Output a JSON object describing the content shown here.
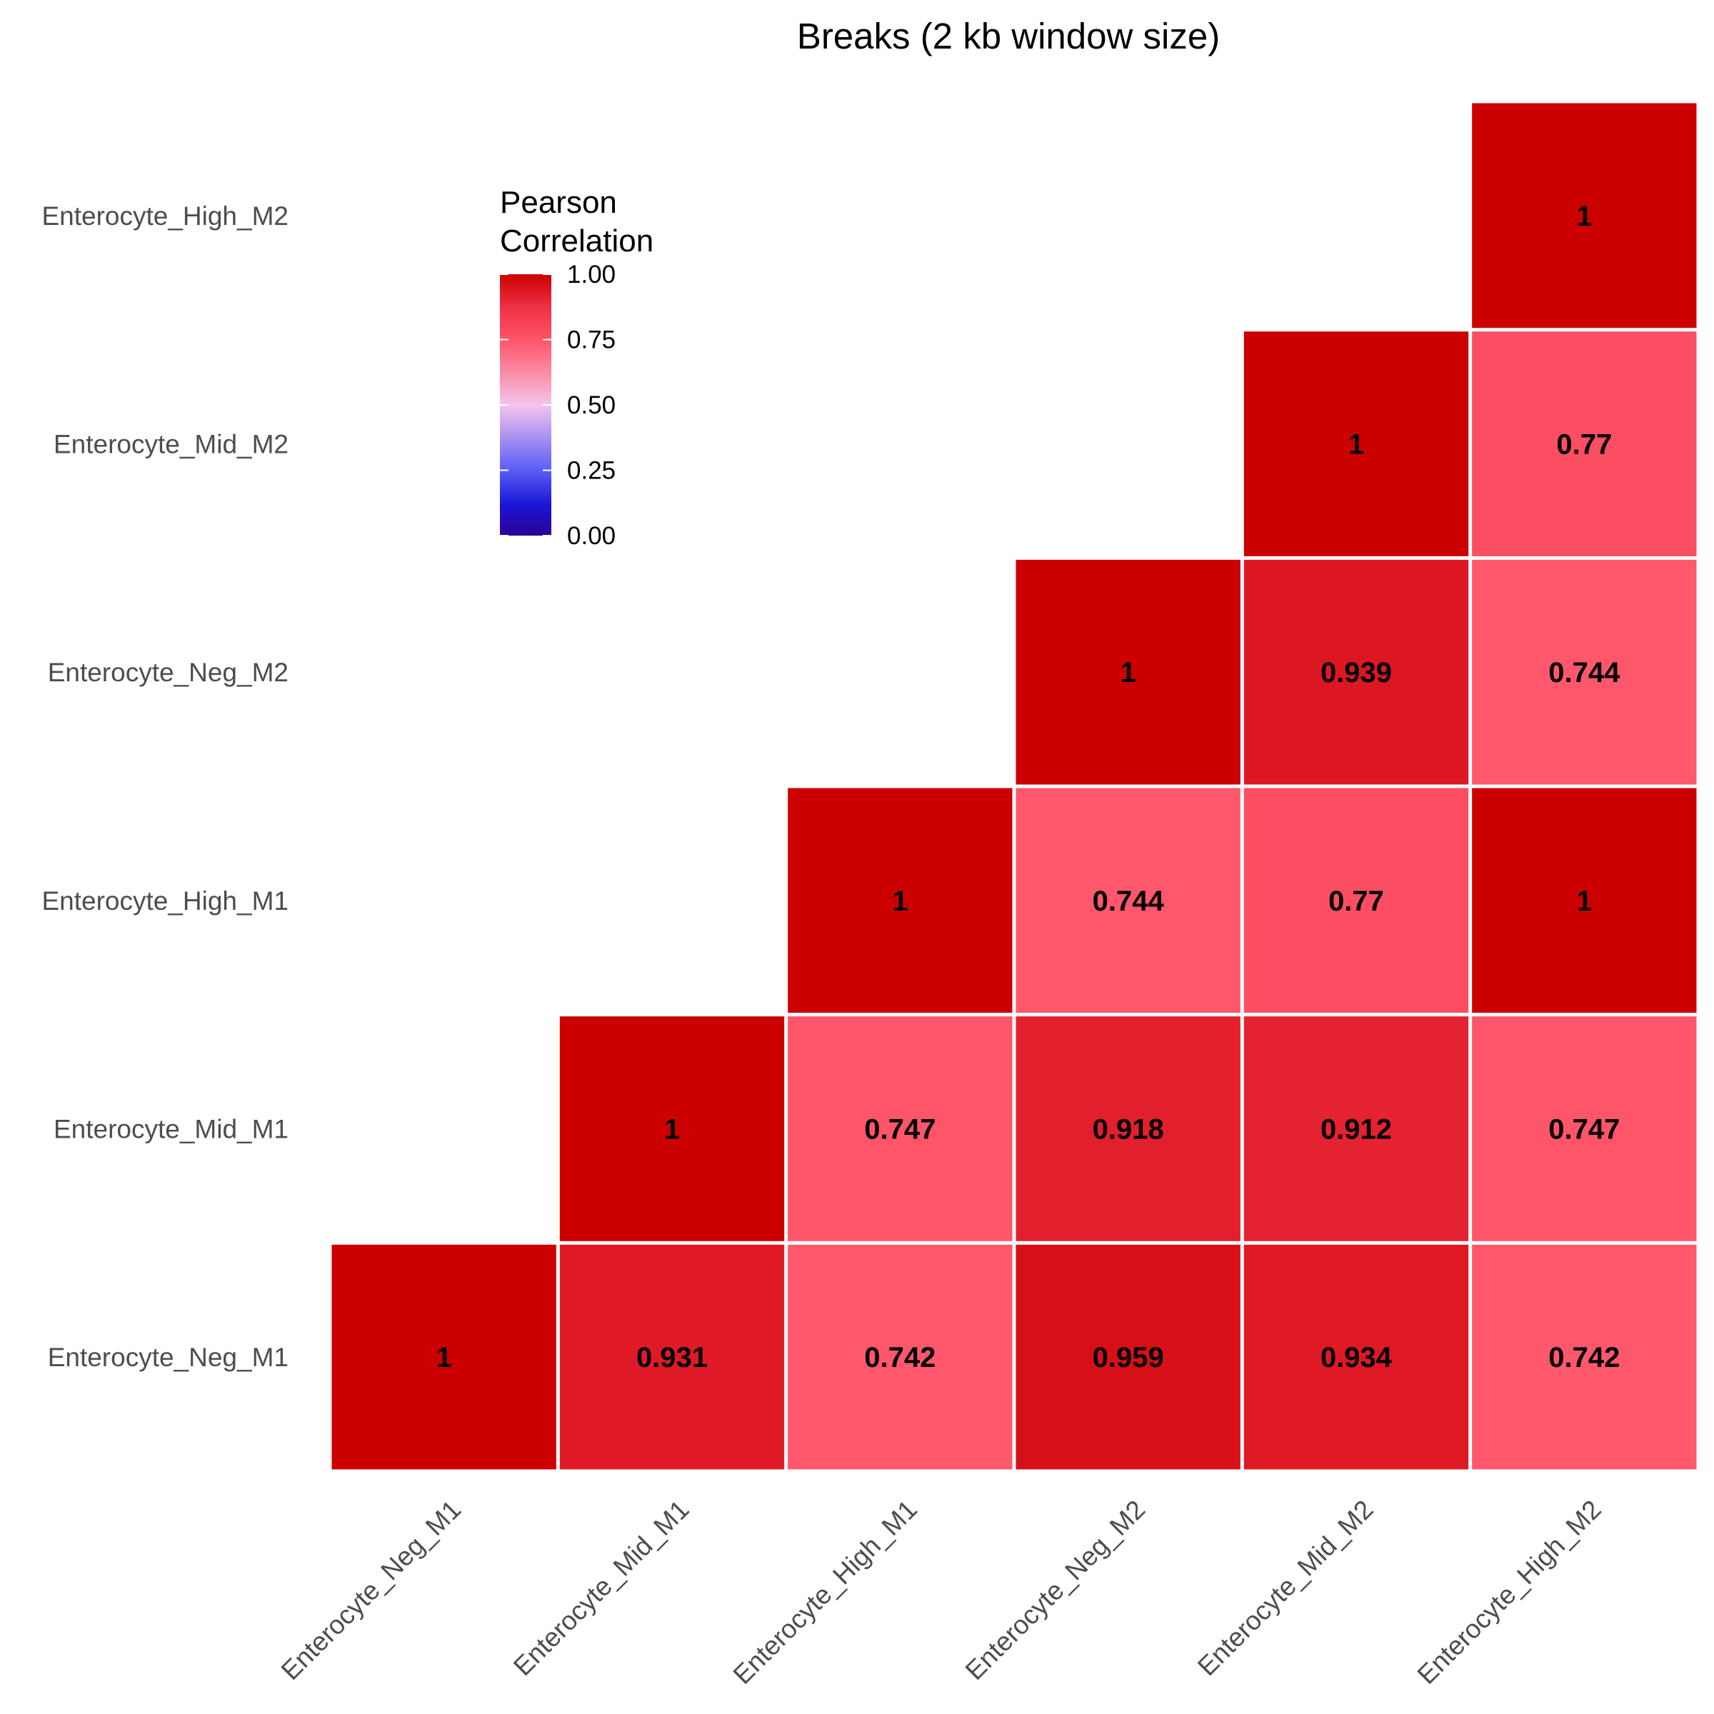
{
  "chart_data": {
    "type": "heatmap",
    "title": "Breaks (2 kb window size)",
    "x_categories": [
      "Enterocyte_Neg_M1",
      "Enterocyte_Mid_M1",
      "Enterocyte_High_M1",
      "Enterocyte_Neg_M2",
      "Enterocyte_Mid_M2",
      "Enterocyte_High_M2"
    ],
    "y_categories": [
      "Enterocyte_Neg_M1",
      "Enterocyte_Mid_M1",
      "Enterocyte_High_M1",
      "Enterocyte_Neg_M2",
      "Enterocyte_Mid_M2",
      "Enterocyte_High_M2"
    ],
    "cells": [
      {
        "x": "Enterocyte_Neg_M1",
        "y": "Enterocyte_Neg_M1",
        "value": 1,
        "label": "1"
      },
      {
        "x": "Enterocyte_Mid_M1",
        "y": "Enterocyte_Neg_M1",
        "value": 0.931,
        "label": "0.931"
      },
      {
        "x": "Enterocyte_High_M1",
        "y": "Enterocyte_Neg_M1",
        "value": 0.742,
        "label": "0.742"
      },
      {
        "x": "Enterocyte_Neg_M2",
        "y": "Enterocyte_Neg_M1",
        "value": 0.959,
        "label": "0.959"
      },
      {
        "x": "Enterocyte_Mid_M2",
        "y": "Enterocyte_Neg_M1",
        "value": 0.934,
        "label": "0.934"
      },
      {
        "x": "Enterocyte_High_M2",
        "y": "Enterocyte_Neg_M1",
        "value": 0.742,
        "label": "0.742"
      },
      {
        "x": "Enterocyte_Mid_M1",
        "y": "Enterocyte_Mid_M1",
        "value": 1,
        "label": "1"
      },
      {
        "x": "Enterocyte_High_M1",
        "y": "Enterocyte_Mid_M1",
        "value": 0.747,
        "label": "0.747"
      },
      {
        "x": "Enterocyte_Neg_M2",
        "y": "Enterocyte_Mid_M1",
        "value": 0.918,
        "label": "0.918"
      },
      {
        "x": "Enterocyte_Mid_M2",
        "y": "Enterocyte_Mid_M1",
        "value": 0.912,
        "label": "0.912"
      },
      {
        "x": "Enterocyte_High_M2",
        "y": "Enterocyte_Mid_M1",
        "value": 0.747,
        "label": "0.747"
      },
      {
        "x": "Enterocyte_High_M1",
        "y": "Enterocyte_High_M1",
        "value": 1,
        "label": "1"
      },
      {
        "x": "Enterocyte_Neg_M2",
        "y": "Enterocyte_High_M1",
        "value": 0.744,
        "label": "0.744"
      },
      {
        "x": "Enterocyte_Mid_M2",
        "y": "Enterocyte_High_M1",
        "value": 0.77,
        "label": "0.77"
      },
      {
        "x": "Enterocyte_High_M2",
        "y": "Enterocyte_High_M1",
        "value": 1,
        "label": "1"
      },
      {
        "x": "Enterocyte_Neg_M2",
        "y": "Enterocyte_Neg_M2",
        "value": 1,
        "label": "1"
      },
      {
        "x": "Enterocyte_Mid_M2",
        "y": "Enterocyte_Neg_M2",
        "value": 0.939,
        "label": "0.939"
      },
      {
        "x": "Enterocyte_High_M2",
        "y": "Enterocyte_Neg_M2",
        "value": 0.744,
        "label": "0.744"
      },
      {
        "x": "Enterocyte_Mid_M2",
        "y": "Enterocyte_Mid_M2",
        "value": 1,
        "label": "1"
      },
      {
        "x": "Enterocyte_High_M2",
        "y": "Enterocyte_Mid_M2",
        "value": 0.77,
        "label": "0.77"
      },
      {
        "x": "Enterocyte_High_M2",
        "y": "Enterocyte_High_M2",
        "value": 1,
        "label": "1"
      }
    ],
    "legend": {
      "title_lines": [
        "Pearson",
        "Correlation"
      ],
      "ticks": [
        "0.00",
        "0.25",
        "0.50",
        "0.75",
        "1.00"
      ],
      "tick_values": [
        0,
        0.25,
        0.5,
        0.75,
        1
      ],
      "range": [
        0,
        1
      ],
      "placement": "top-left inside plot"
    },
    "color_scale": {
      "stops": [
        {
          "value": 0.0,
          "color": "#2c0096"
        },
        {
          "value": 0.12,
          "color": "#1a16d6"
        },
        {
          "value": 0.25,
          "color": "#5a5ef5"
        },
        {
          "value": 0.5,
          "color": "#f4c4ec"
        },
        {
          "value": 0.625,
          "color": "#f88ca5"
        },
        {
          "value": 0.75,
          "color": "#ff5468"
        },
        {
          "value": 0.875,
          "color": "#ee3045"
        },
        {
          "value": 1.0,
          "color": "#cc0000"
        }
      ]
    },
    "grid": false,
    "xlabel": "",
    "ylabel": ""
  }
}
